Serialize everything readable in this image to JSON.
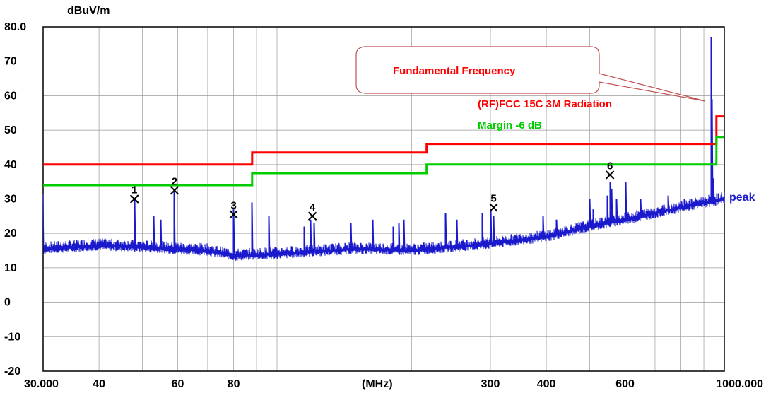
{
  "chart_data": {
    "type": "line",
    "x_scale": "log",
    "xlim": [
      30,
      1000
    ],
    "ylim": [
      -20,
      80
    ],
    "y_unit": "dBuV/m",
    "x_unit": "(MHz)",
    "y_ticks": [
      "80.0",
      "70",
      "60",
      "50",
      "40",
      "30",
      "20",
      "10",
      "0",
      "-10",
      "-20"
    ],
    "x_ticks": [
      {
        "v": 30,
        "label": "30.000"
      },
      {
        "v": 40,
        "label": "40"
      },
      {
        "v": 60,
        "label": "60"
      },
      {
        "v": 80,
        "label": "80"
      },
      {
        "v": 300,
        "label": "300"
      },
      {
        "v": 400,
        "label": "400"
      },
      {
        "v": 600,
        "label": "600"
      },
      {
        "v": 1000,
        "label": "1000.000"
      }
    ],
    "grid_x": [
      30,
      40,
      50,
      60,
      70,
      80,
      90,
      100,
      200,
      300,
      400,
      500,
      600,
      700,
      800,
      900,
      1000
    ],
    "grid_y": [
      -20,
      -10,
      0,
      10,
      20,
      30,
      40,
      50,
      60,
      70,
      80
    ],
    "colors": {
      "limit": "#ff0000",
      "margin": "#00cc00",
      "trace": "#1a1acc",
      "grid": "#9a9a9a"
    },
    "series": [
      {
        "name": "(RF)FCC 15C 3M Radiation",
        "color": "#ff0000",
        "points": [
          [
            30,
            40
          ],
          [
            88,
            40
          ],
          [
            88,
            43.5
          ],
          [
            216,
            43.5
          ],
          [
            216,
            46
          ],
          [
            960,
            46
          ],
          [
            960,
            54
          ],
          [
            1000,
            54
          ]
        ]
      },
      {
        "name": "Margin -6 dB",
        "color": "#00cc00",
        "points": [
          [
            30,
            34
          ],
          [
            88,
            34
          ],
          [
            88,
            37.5
          ],
          [
            216,
            37.5
          ],
          [
            216,
            40
          ],
          [
            960,
            40
          ],
          [
            960,
            48
          ],
          [
            1000,
            48
          ]
        ]
      },
      {
        "name": "peak",
        "color": "#1a1acc",
        "baseline": [
          [
            30,
            15.5
          ],
          [
            40,
            16.5
          ],
          [
            50,
            16
          ],
          [
            70,
            15
          ],
          [
            80,
            13.5
          ],
          [
            100,
            14
          ],
          [
            150,
            15.5
          ],
          [
            200,
            15
          ],
          [
            300,
            17
          ],
          [
            400,
            19
          ],
          [
            500,
            22
          ],
          [
            600,
            24
          ],
          [
            800,
            27.5
          ],
          [
            1000,
            30
          ]
        ],
        "spikes": [
          [
            48,
            30
          ],
          [
            53,
            25
          ],
          [
            55,
            24
          ],
          [
            59,
            32
          ],
          [
            80,
            27
          ],
          [
            88,
            29
          ],
          [
            96,
            25
          ],
          [
            115,
            22
          ],
          [
            119,
            24
          ],
          [
            121,
            23
          ],
          [
            146,
            23
          ],
          [
            164,
            24
          ],
          [
            182,
            22
          ],
          [
            187,
            23
          ],
          [
            192,
            24
          ],
          [
            238,
            26
          ],
          [
            252,
            24
          ],
          [
            288,
            26
          ],
          [
            300,
            27
          ],
          [
            305,
            25
          ],
          [
            393,
            25
          ],
          [
            422,
            24
          ],
          [
            500,
            30
          ],
          [
            510,
            27
          ],
          [
            548,
            31
          ],
          [
            555,
            35
          ],
          [
            560,
            33
          ],
          [
            575,
            30
          ],
          [
            603,
            35
          ],
          [
            650,
            30
          ],
          [
            750,
            31
          ],
          [
            815,
            30
          ],
          [
            935,
            77
          ],
          [
            938,
            59
          ],
          [
            945,
            36
          ]
        ]
      }
    ],
    "markers": [
      {
        "label": "1",
        "x": 48.0,
        "y": 30
      },
      {
        "label": "2",
        "x": 59.0,
        "y": 32.5
      },
      {
        "label": "3",
        "x": 80.0,
        "y": 25.5
      },
      {
        "label": "4",
        "x": 120.0,
        "y": 25
      },
      {
        "label": "5",
        "x": 305.0,
        "y": 27.5
      },
      {
        "label": "6",
        "x": 555.0,
        "y": 37
      }
    ],
    "annotation": {
      "text": "Fundamental Frequency",
      "target_x": 935,
      "target_y": 59
    }
  }
}
